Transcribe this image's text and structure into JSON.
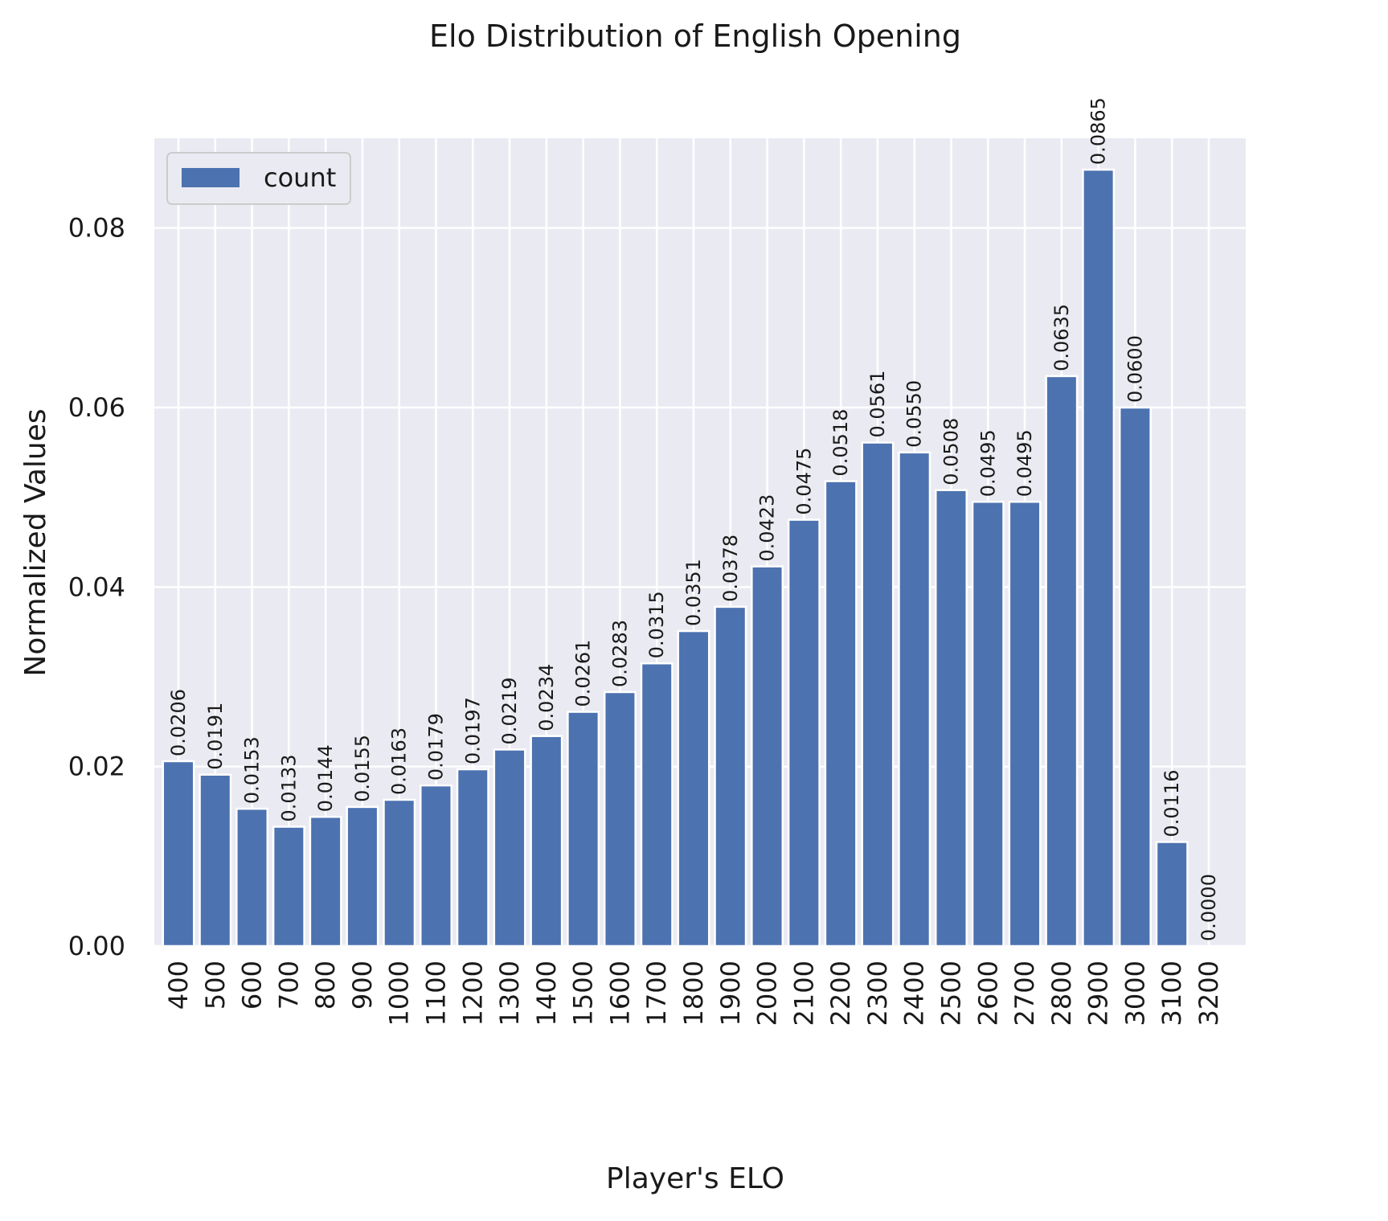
{
  "chart_data": {
    "type": "bar",
    "title": "Elo Distribution of English Opening",
    "xlabel": "Player's ELO",
    "ylabel": "Normalized Values",
    "categories": [
      "400",
      "500",
      "600",
      "700",
      "800",
      "900",
      "1000",
      "1100",
      "1200",
      "1300",
      "1400",
      "1500",
      "1600",
      "1700",
      "1800",
      "1900",
      "2000",
      "2100",
      "2200",
      "2300",
      "2400",
      "2500",
      "2600",
      "2700",
      "2800",
      "2900",
      "3000",
      "3100",
      "3200"
    ],
    "series": [
      {
        "name": "count",
        "values": [
          0.0206,
          0.0191,
          0.0153,
          0.0133,
          0.0144,
          0.0155,
          0.0163,
          0.0179,
          0.0197,
          0.0219,
          0.0234,
          0.0261,
          0.0283,
          0.0315,
          0.0351,
          0.0378,
          0.0423,
          0.0475,
          0.0518,
          0.0561,
          0.055,
          0.0508,
          0.0495,
          0.0495,
          0.0635,
          0.0865,
          0.06,
          0.0116,
          0.0
        ],
        "labels": [
          "0.0206",
          "0.0191",
          "0.0153",
          "0.0133",
          "0.0144",
          "0.0155",
          "0.0163",
          "0.0179",
          "0.0197",
          "0.0219",
          "0.0234",
          "0.0261",
          "0.0283",
          "0.0315",
          "0.0351",
          "0.0378",
          "0.0423",
          "0.0475",
          "0.0518",
          "0.0561",
          "0.0550",
          "0.0508",
          "0.0495",
          "0.0495",
          "0.0635",
          "0.0865",
          "0.0600",
          "0.0116",
          "0.0000"
        ]
      }
    ],
    "yticks": [
      "0.00",
      "0.02",
      "0.04",
      "0.06",
      "0.08"
    ],
    "ylim": [
      0,
      0.09
    ],
    "grid": true,
    "legend_position": "top-left",
    "colors": {
      "bar": "#4c72b0",
      "plot_bg": "#eaeaf2",
      "grid": "#ffffff"
    }
  }
}
